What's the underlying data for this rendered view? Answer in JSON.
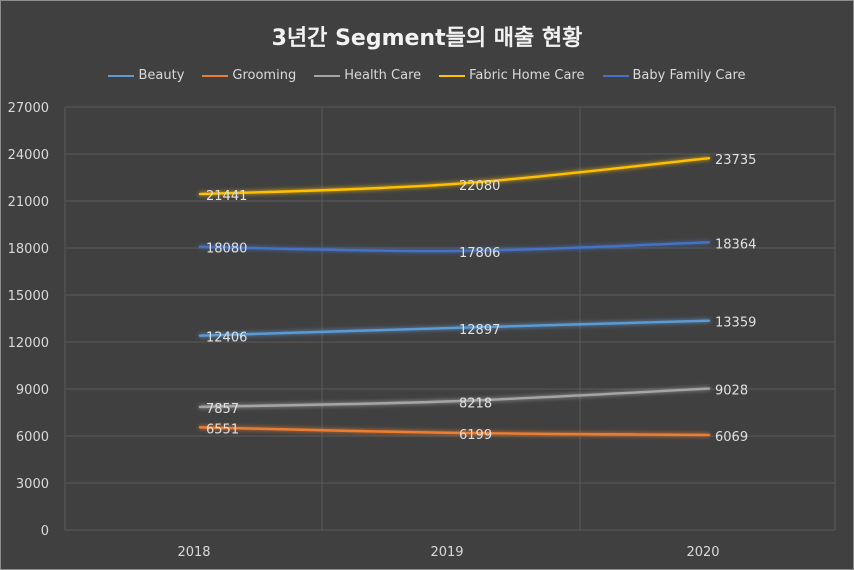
{
  "chart_data": {
    "type": "line",
    "title": "3년간 Segment들의 매출 현황",
    "categories": [
      "2018",
      "2019",
      "2020"
    ],
    "ylim": [
      0,
      27000
    ],
    "yticks": [
      "0",
      "3000",
      "6000",
      "9000",
      "12000",
      "15000",
      "18000",
      "21000",
      "24000",
      "27000"
    ],
    "legend_position": "top",
    "grid": true,
    "series": [
      {
        "name": "Beauty",
        "color": "#5b9bd5",
        "values": [
          12406,
          12897,
          13359
        ],
        "labels": [
          "12406",
          "12897",
          "13359"
        ]
      },
      {
        "name": "Grooming",
        "color": "#ed7d31",
        "values": [
          6551,
          6199,
          6069
        ],
        "labels": [
          "6551",
          "6199",
          "6069"
        ]
      },
      {
        "name": "Health Care",
        "color": "#a5a5a5",
        "values": [
          7857,
          8218,
          9028
        ],
        "labels": [
          "7857",
          "8218",
          "9028"
        ]
      },
      {
        "name": "Fabric Home Care",
        "color": "#ffc000",
        "values": [
          21441,
          22080,
          23735
        ],
        "labels": [
          "21441",
          "22080",
          "23735"
        ]
      },
      {
        "name": "Baby Family Care",
        "color": "#4472c4",
        "values": [
          18080,
          17806,
          18364
        ],
        "labels": [
          "18080",
          "17806",
          "18364"
        ]
      }
    ]
  }
}
